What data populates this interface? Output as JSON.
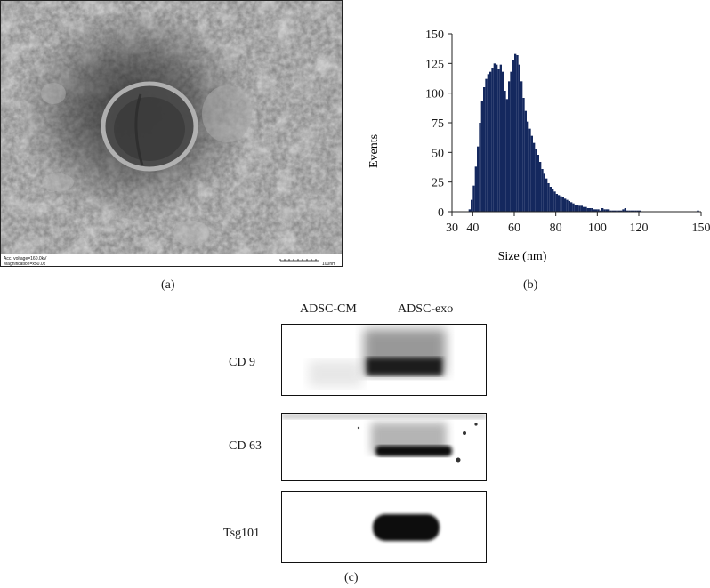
{
  "panel_a": {
    "label": "(a)",
    "tem_info_line1": "Acc. voltage=160.0kV",
    "tem_info_line2": "Magnification=x50.0k",
    "scale_bar_text": "100nm"
  },
  "panel_b": {
    "label": "(b)"
  },
  "panel_c": {
    "label": "(c)",
    "columns": [
      "ADSC-CM",
      "ADSC-exo"
    ],
    "rows": [
      "CD 9",
      "CD 63",
      "Tsg101"
    ]
  },
  "chart_data": {
    "type": "bar",
    "title": "",
    "xlabel": "Size (nm)",
    "ylabel": "Events",
    "xlim": [
      30,
      150
    ],
    "ylim": [
      0,
      150
    ],
    "xticks": [
      30,
      40,
      60,
      80,
      100,
      120,
      150
    ],
    "yticks": [
      0,
      25,
      50,
      75,
      100,
      125,
      150
    ],
    "bar_color": "#14285e",
    "bin_width": 1,
    "x": [
      38,
      39,
      40,
      41,
      42,
      43,
      44,
      45,
      46,
      47,
      48,
      49,
      50,
      51,
      52,
      53,
      54,
      55,
      56,
      57,
      58,
      59,
      60,
      61,
      62,
      63,
      64,
      65,
      66,
      67,
      68,
      69,
      70,
      71,
      72,
      73,
      74,
      75,
      76,
      77,
      78,
      79,
      80,
      81,
      82,
      83,
      84,
      85,
      86,
      87,
      88,
      89,
      90,
      91,
      92,
      93,
      94,
      95,
      96,
      97,
      98,
      99,
      100,
      101,
      102,
      103,
      104,
      105,
      106,
      107,
      108,
      109,
      110,
      111,
      112,
      113,
      114,
      115,
      116,
      117,
      118,
      119,
      120,
      148
    ],
    "values": [
      2,
      10,
      22,
      38,
      55,
      75,
      93,
      105,
      112,
      116,
      118,
      121,
      125,
      124,
      120,
      124,
      118,
      102,
      95,
      110,
      118,
      128,
      133,
      132,
      124,
      110,
      96,
      85,
      76,
      70,
      64,
      58,
      53,
      48,
      42,
      36,
      32,
      28,
      24,
      21,
      19,
      17,
      15,
      14,
      13,
      12,
      11,
      10,
      9,
      8,
      7,
      6,
      6,
      5,
      5,
      4,
      4,
      3,
      3,
      3,
      2,
      2,
      2,
      1,
      3,
      2,
      2,
      2,
      1,
      1,
      1,
      1,
      1,
      1,
      2,
      3,
      1,
      1,
      1,
      1,
      1,
      1,
      1,
      1
    ]
  }
}
